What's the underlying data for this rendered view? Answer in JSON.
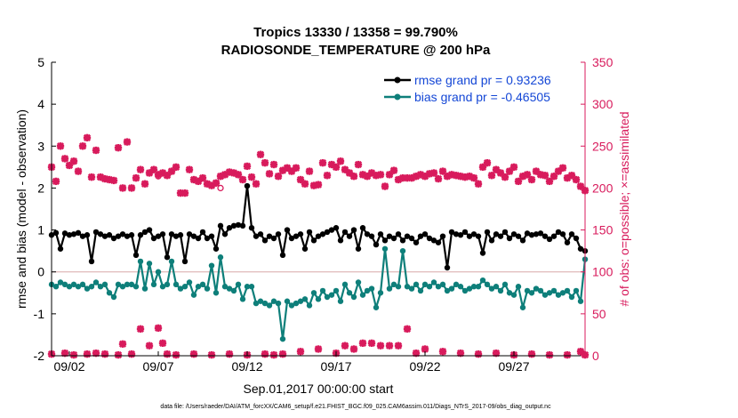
{
  "colors": {
    "rmse": "#000000",
    "bias": "#0e7f7a",
    "obs": "#d81b5c",
    "axis_left": "#000000",
    "axis_right": "#d81b5c",
    "legend_text": "#1447d6",
    "zero_line": "#d8a8a8"
  },
  "chart_data": {
    "type": "line",
    "title": "Tropics 13330 / 13358 = 99.790%",
    "subtitle": "RADIOSONDE_TEMPERATURE @ 200 hPa",
    "xlabel": "Sep.01,2017 00:00:00 start",
    "ylabel": "rmse and bias (model - observation)",
    "ylabel_right": "# of obs: o=possible; ×=assimilated",
    "footnote": "data file: /Users/raeder/DAI/ATM_forcXX/CAM6_setup/f.e21.FHIST_BGC.f09_025.CAM6assim.011/Diags_NTrS_2017-09/obs_diag_output.nc",
    "ylim": [
      -2,
      5
    ],
    "yticks": [
      "-2",
      "-1",
      "0",
      "1",
      "2",
      "3",
      "4",
      "5"
    ],
    "ylim_right": [
      0,
      350
    ],
    "yticks_right": [
      "0",
      "50",
      "100",
      "150",
      "200",
      "250",
      "300",
      "350"
    ],
    "xlim": [
      1.0,
      31.0
    ],
    "xticks": [
      {
        "x": 2,
        "label": "09/02"
      },
      {
        "x": 7,
        "label": "09/07"
      },
      {
        "x": 12,
        "label": "09/12"
      },
      {
        "x": 17,
        "label": "09/17"
      },
      {
        "x": 22,
        "label": "09/22"
      },
      {
        "x": 27,
        "label": "09/27"
      }
    ],
    "legend": {
      "position": "top-right",
      "entries": [
        "rmse grand pr = 0.93236",
        "bias grand pr = -0.46505"
      ]
    },
    "x": [
      1.0,
      1.25,
      1.5,
      1.75,
      2.0,
      2.25,
      2.5,
      2.75,
      3.0,
      3.25,
      3.5,
      3.75,
      4.0,
      4.25,
      4.5,
      4.75,
      5.0,
      5.25,
      5.5,
      5.75,
      6.0,
      6.25,
      6.5,
      6.75,
      7.0,
      7.25,
      7.5,
      7.75,
      8.0,
      8.25,
      8.5,
      8.75,
      9.0,
      9.25,
      9.5,
      9.75,
      10.0,
      10.25,
      10.5,
      10.75,
      11.0,
      11.25,
      11.5,
      11.75,
      12.0,
      12.25,
      12.5,
      12.75,
      13.0,
      13.25,
      13.5,
      13.75,
      14.0,
      14.25,
      14.5,
      14.75,
      15.0,
      15.25,
      15.5,
      15.75,
      16.0,
      16.25,
      16.5,
      16.75,
      17.0,
      17.25,
      17.5,
      17.75,
      18.0,
      18.25,
      18.5,
      18.75,
      19.0,
      19.25,
      19.5,
      19.75,
      20.0,
      20.25,
      20.5,
      20.75,
      21.0,
      21.25,
      21.5,
      21.75,
      22.0,
      22.25,
      22.5,
      22.75,
      23.0,
      23.25,
      23.5,
      23.75,
      24.0,
      24.25,
      24.5,
      24.75,
      25.0,
      25.25,
      25.5,
      25.75,
      26.0,
      26.25,
      26.5,
      26.75,
      27.0,
      27.25,
      27.5,
      27.75,
      28.0,
      28.25,
      28.5,
      28.75,
      29.0,
      29.25,
      29.5,
      29.75,
      30.0,
      30.25,
      30.5,
      30.75,
      31.0
    ],
    "series": [
      {
        "name": "rmse",
        "values": [
          0.88,
          0.93,
          0.55,
          0.92,
          0.88,
          0.9,
          0.93,
          0.85,
          0.88,
          0.25,
          0.95,
          0.9,
          0.85,
          0.88,
          0.8,
          0.85,
          0.9,
          0.85,
          0.88,
          0.4,
          0.88,
          0.95,
          1.0,
          0.8,
          0.85,
          0.9,
          0.35,
          0.9,
          0.85,
          0.88,
          0.25,
          0.9,
          0.85,
          0.8,
          0.95,
          0.8,
          0.85,
          0.55,
          1.1,
          0.9,
          1.05,
          1.1,
          1.12,
          1.1,
          2.05,
          1.05,
          0.85,
          0.9,
          0.75,
          0.85,
          0.8,
          0.9,
          0.4,
          1.0,
          0.8,
          0.85,
          0.9,
          0.55,
          0.95,
          0.75,
          0.85,
          0.9,
          0.95,
          1.0,
          1.05,
          0.75,
          0.95,
          0.85,
          1.0,
          0.55,
          1.05,
          0.9,
          0.85,
          0.65,
          0.9,
          0.75,
          0.85,
          0.8,
          0.9,
          0.75,
          0.85,
          0.8,
          0.7,
          0.85,
          0.9,
          0.8,
          0.75,
          0.7,
          0.85,
          0.1,
          0.95,
          0.9,
          0.88,
          0.95,
          0.85,
          0.9,
          0.85,
          0.45,
          0.95,
          0.75,
          0.9,
          0.85,
          0.95,
          0.8,
          0.9,
          0.85,
          0.75,
          0.92,
          0.88,
          0.9,
          0.92,
          0.85,
          0.78,
          0.85,
          0.95,
          0.9,
          0.7,
          0.9,
          0.8,
          0.55,
          0.5
        ]
      },
      {
        "name": "bias",
        "values": [
          -0.3,
          -0.35,
          -0.25,
          -0.3,
          -0.35,
          -0.3,
          -0.35,
          -0.3,
          -0.4,
          -0.35,
          -0.25,
          -0.35,
          -0.3,
          -0.5,
          -0.6,
          -0.3,
          -0.35,
          -0.3,
          -0.3,
          -0.35,
          0.25,
          -0.4,
          0.2,
          -0.3,
          0.0,
          -0.35,
          -0.3,
          0.25,
          -0.3,
          -0.4,
          -0.35,
          -0.25,
          -0.55,
          -0.35,
          -0.3,
          -0.4,
          0.15,
          -0.5,
          0.35,
          -0.35,
          -0.4,
          -0.45,
          -0.3,
          -0.65,
          -0.35,
          -0.35,
          -0.75,
          -0.7,
          -0.75,
          -0.8,
          -0.7,
          -0.75,
          -1.6,
          -0.7,
          -0.8,
          -0.75,
          -0.7,
          -0.65,
          -0.8,
          -0.5,
          -0.65,
          -0.45,
          -0.6,
          -0.55,
          -0.45,
          -0.7,
          -0.3,
          -0.5,
          -0.6,
          -0.25,
          -0.55,
          -0.45,
          -0.4,
          -0.85,
          -0.5,
          0.55,
          -0.4,
          -0.3,
          -0.35,
          0.5,
          -0.35,
          -0.4,
          -0.3,
          -0.45,
          -0.3,
          -0.35,
          -0.25,
          -0.35,
          -0.3,
          -0.45,
          -0.4,
          -0.3,
          -0.35,
          -0.45,
          -0.4,
          -0.35,
          -0.35,
          -0.2,
          -0.3,
          -0.4,
          -0.35,
          -0.45,
          -0.3,
          -0.5,
          -0.55,
          -0.35,
          -0.85,
          -0.45,
          -0.5,
          -0.4,
          -0.45,
          -0.55,
          -0.5,
          -0.45,
          -0.55,
          -0.5,
          -0.45,
          -0.6,
          -0.45,
          -0.7,
          0.3
        ]
      }
    ],
    "obs_assimilated_top": [
      225,
      208,
      250,
      235,
      227,
      232,
      220,
      250,
      260,
      213,
      245,
      213,
      211,
      210,
      209,
      248,
      200,
      255,
      200,
      212,
      222,
      205,
      218,
      222,
      216,
      218,
      215,
      220,
      225,
      194,
      194,
      222,
      210,
      208,
      212,
      205,
      203,
      206,
      214,
      216,
      219,
      218,
      216,
      210,
      226,
      213,
      205,
      240,
      230,
      217,
      228,
      214,
      221,
      224,
      220,
      224,
      210,
      205,
      220,
      203,
      204,
      230,
      215,
      228,
      225,
      232,
      222,
      218,
      214,
      228,
      216,
      214,
      218,
      215,
      216,
      202,
      216,
      221,
      210,
      212,
      212,
      212,
      214,
      216,
      214,
      217,
      218,
      211,
      220,
      214,
      216,
      215,
      214,
      213,
      214,
      212,
      205,
      225,
      230,
      215,
      222,
      218,
      213,
      220,
      225,
      208,
      214,
      216,
      210,
      220,
      216,
      215,
      208,
      214,
      220,
      224,
      212,
      215,
      210,
      202,
      197
    ],
    "obs_possible_top_extra": [
      [
        7,
        214
      ],
      [
        10.5,
        200
      ]
    ],
    "obs_assimilated_bottom": [
      [
        1.0,
        2
      ],
      [
        1.75,
        3
      ],
      [
        2.25,
        1
      ],
      [
        3.0,
        2
      ],
      [
        3.5,
        3
      ],
      [
        4.0,
        2
      ],
      [
        4.75,
        1
      ],
      [
        5.0,
        14
      ],
      [
        5.5,
        2
      ],
      [
        6.0,
        32
      ],
      [
        6.5,
        12
      ],
      [
        7.0,
        33
      ],
      [
        7.25,
        15
      ],
      [
        7.5,
        2
      ],
      [
        8.0,
        1
      ],
      [
        9.0,
        2
      ],
      [
        10.0,
        1
      ],
      [
        11.0,
        2
      ],
      [
        12.0,
        1
      ],
      [
        13.0,
        2
      ],
      [
        13.5,
        1
      ],
      [
        14.0,
        2
      ],
      [
        15.0,
        5
      ],
      [
        16.0,
        8
      ],
      [
        17.0,
        3
      ],
      [
        17.5,
        12
      ],
      [
        18.0,
        8
      ],
      [
        18.5,
        15
      ],
      [
        19.0,
        15
      ],
      [
        19.5,
        12
      ],
      [
        20.0,
        12
      ],
      [
        20.5,
        12
      ],
      [
        21.0,
        32
      ],
      [
        21.5,
        3
      ],
      [
        22.0,
        8
      ],
      [
        23.0,
        5
      ],
      [
        24.0,
        3
      ],
      [
        25.0,
        2
      ],
      [
        26.0,
        3
      ],
      [
        27.0,
        1
      ],
      [
        28.0,
        2
      ],
      [
        29.0,
        1
      ],
      [
        30.0,
        1
      ],
      [
        30.75,
        5
      ],
      [
        31.0,
        1
      ]
    ]
  }
}
